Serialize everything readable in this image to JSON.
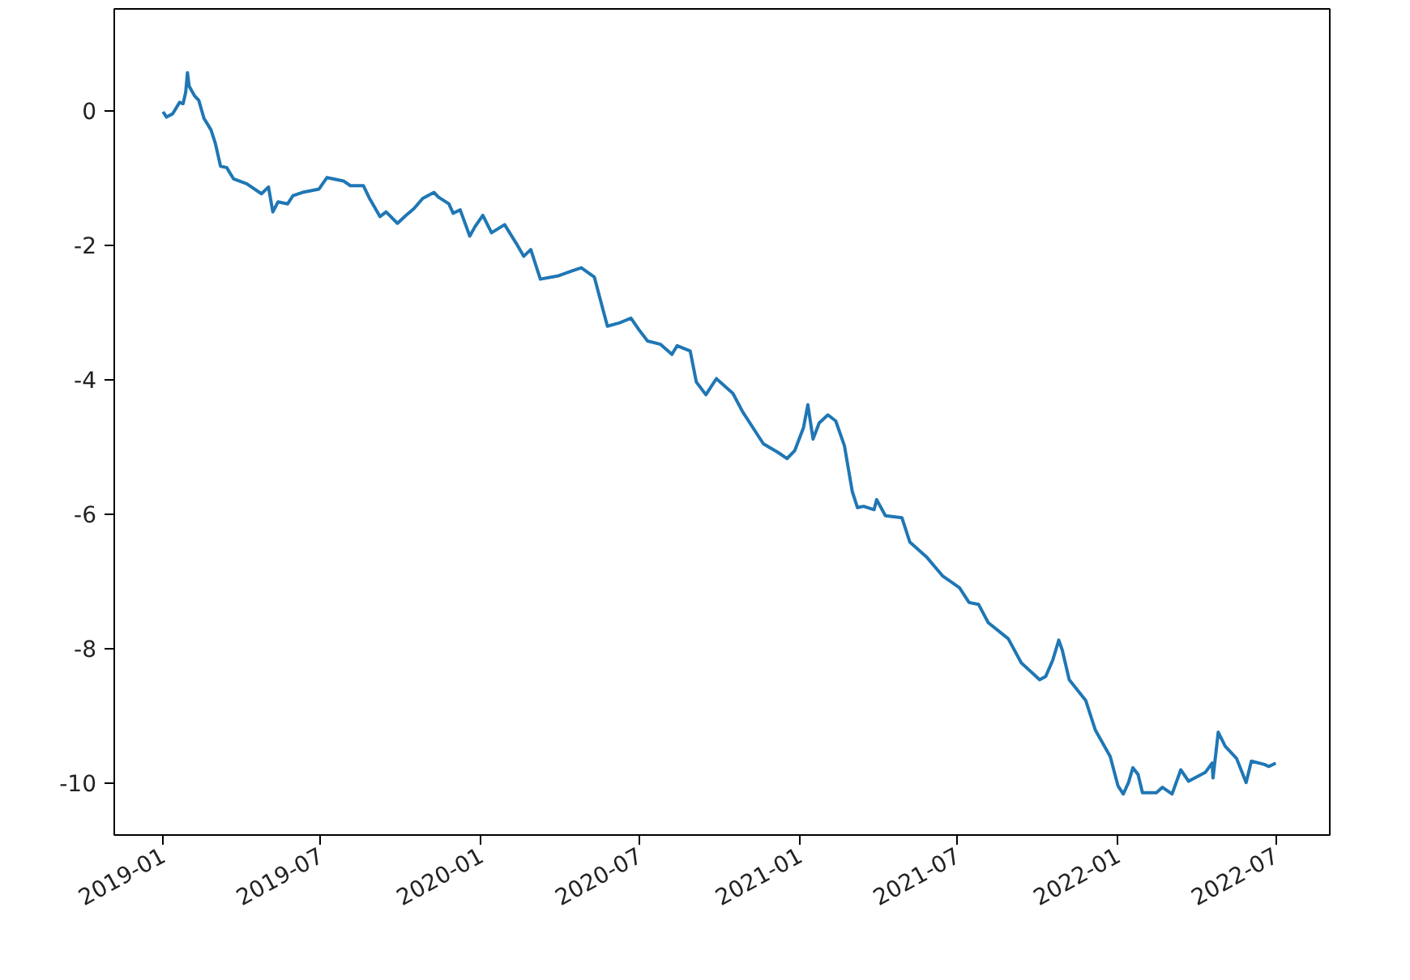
{
  "chart_data": {
    "type": "line",
    "x": [
      "2019-01-01",
      "2019-01-05",
      "2019-01-12",
      "2019-01-20",
      "2019-01-24",
      "2019-01-27",
      "2019-01-29",
      "2019-01-31",
      "2019-02-06",
      "2019-02-11",
      "2019-02-17",
      "2019-02-25",
      "2019-03-02",
      "2019-03-08",
      "2019-03-15",
      "2019-03-23",
      "2019-04-07",
      "2019-04-24",
      "2019-05-02",
      "2019-05-07",
      "2019-05-13",
      "2019-05-24",
      "2019-05-30",
      "2019-06-10",
      "2019-06-29",
      "2019-07-08",
      "2019-07-27",
      "2019-08-04",
      "2019-08-19",
      "2019-08-26",
      "2019-09-07",
      "2019-09-14",
      "2019-09-27",
      "2019-10-07",
      "2019-10-16",
      "2019-10-26",
      "2019-11-08",
      "2019-11-13",
      "2019-11-25",
      "2019-11-30",
      "2019-12-08",
      "2019-12-19",
      "2019-12-25",
      "2020-01-03",
      "2020-01-13",
      "2020-01-28",
      "2020-02-10",
      "2020-02-19",
      "2020-02-27",
      "2020-03-09",
      "2020-03-30",
      "2020-04-16",
      "2020-04-25",
      "2020-05-10",
      "2020-05-20",
      "2020-05-25",
      "2020-06-08",
      "2020-06-21",
      "2020-06-30",
      "2020-07-10",
      "2020-07-25",
      "2020-08-07",
      "2020-08-13",
      "2020-08-28",
      "2020-09-04",
      "2020-09-15",
      "2020-09-27",
      "2020-10-16",
      "2020-10-27",
      "2020-11-20",
      "2020-12-07",
      "2020-12-17",
      "2020-12-26",
      "2021-01-05",
      "2021-01-10",
      "2021-01-16",
      "2021-01-23",
      "2021-02-02",
      "2021-02-11",
      "2021-02-21",
      "2021-03-02",
      "2021-03-08",
      "2021-03-15",
      "2021-03-27",
      "2021-03-30",
      "2021-04-09",
      "2021-04-28",
      "2021-05-07",
      "2021-05-26",
      "2021-06-14",
      "2021-07-03",
      "2021-07-14",
      "2021-07-25",
      "2021-08-05",
      "2021-08-28",
      "2021-09-12",
      "2021-09-23",
      "2021-10-03",
      "2021-10-10",
      "2021-10-18",
      "2021-10-25",
      "2021-10-29",
      "2021-11-06",
      "2021-11-25",
      "2021-12-06",
      "2021-12-23",
      "2022-01-01",
      "2022-01-07",
      "2022-01-13",
      "2022-01-18",
      "2022-01-24",
      "2022-01-29",
      "2022-02-14",
      "2022-02-21",
      "2022-03-04",
      "2022-03-14",
      "2022-03-23",
      "2022-04-11",
      "2022-04-19",
      "2022-04-20",
      "2022-04-26",
      "2022-05-04",
      "2022-05-17",
      "2022-05-28",
      "2022-06-03",
      "2022-06-18",
      "2022-06-23",
      "2022-07-01"
    ],
    "series": [
      {
        "color": "#1f77b4",
        "values": [
          -0.02,
          -0.1,
          -0.05,
          0.12,
          0.1,
          0.27,
          0.56,
          0.36,
          0.22,
          0.15,
          -0.12,
          -0.29,
          -0.49,
          -0.83,
          -0.85,
          -1.02,
          -1.09,
          -1.24,
          -1.14,
          -1.51,
          -1.36,
          -1.39,
          -1.27,
          -1.22,
          -1.17,
          -1.0,
          -1.05,
          -1.12,
          -1.12,
          -1.31,
          -1.58,
          -1.51,
          -1.68,
          -1.56,
          -1.46,
          -1.31,
          -1.22,
          -1.29,
          -1.39,
          -1.53,
          -1.48,
          -1.87,
          -1.73,
          -1.56,
          -1.82,
          -1.7,
          -1.97,
          -2.17,
          -2.07,
          -2.51,
          -2.46,
          -2.38,
          -2.34,
          -2.48,
          -2.97,
          -3.21,
          -3.16,
          -3.09,
          -3.26,
          -3.43,
          -3.48,
          -3.63,
          -3.5,
          -3.58,
          -4.04,
          -4.23,
          -3.99,
          -4.21,
          -4.48,
          -4.96,
          -5.09,
          -5.18,
          -5.06,
          -4.72,
          -4.38,
          -4.89,
          -4.65,
          -4.53,
          -4.62,
          -4.99,
          -5.67,
          -5.91,
          -5.89,
          -5.94,
          -5.79,
          -6.03,
          -6.06,
          -6.42,
          -6.64,
          -6.93,
          -7.1,
          -7.32,
          -7.35,
          -7.62,
          -7.86,
          -8.22,
          -8.35,
          -8.47,
          -8.42,
          -8.18,
          -7.88,
          -8.03,
          -8.47,
          -8.78,
          -9.22,
          -9.61,
          -10.05,
          -10.17,
          -10.0,
          -9.78,
          -9.88,
          -10.15,
          -10.15,
          -10.07,
          -10.17,
          -9.81,
          -9.98,
          -9.85,
          -9.71,
          -9.93,
          -9.25,
          -9.46,
          -9.64,
          -10.0,
          -9.68,
          -9.73,
          -9.76,
          -9.71
        ]
      }
    ],
    "xlim": [
      "2018-11-06",
      "2022-09-01"
    ],
    "xticks": [
      {
        "value": "2019-01-01",
        "label": "2019-01"
      },
      {
        "value": "2019-07-01",
        "label": "2019-07"
      },
      {
        "value": "2020-01-01",
        "label": "2020-01"
      },
      {
        "value": "2020-07-01",
        "label": "2020-07"
      },
      {
        "value": "2021-01-01",
        "label": "2021-01"
      },
      {
        "value": "2021-07-01",
        "label": "2021-07"
      },
      {
        "value": "2022-01-01",
        "label": "2022-01"
      },
      {
        "value": "2022-07-01",
        "label": "2022-07"
      }
    ],
    "ylim": [
      -10.78,
      1.51
    ],
    "yticks": [
      0,
      -2,
      -4,
      -6,
      -8,
      -10
    ],
    "grid": false,
    "marker": "none",
    "line_style": "solid"
  }
}
